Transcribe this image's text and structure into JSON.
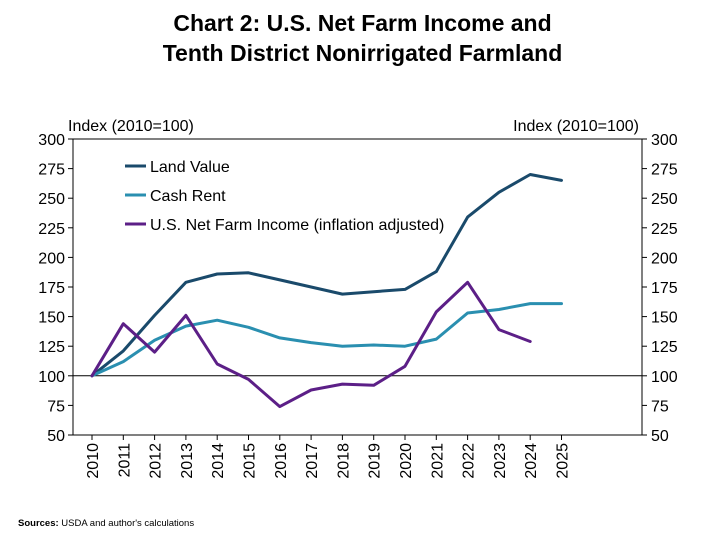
{
  "chart_data": {
    "type": "line",
    "title_line1": "Chart 2: U.S. Net Farm Income and",
    "title_line2": "Tenth District Nonirrigated Farmland",
    "ylabel_left": "Index (2010=100)",
    "ylabel_right": "Index (2010=100)",
    "ylim": [
      50,
      300
    ],
    "yticks": [
      50,
      75,
      100,
      125,
      150,
      175,
      200,
      225,
      250,
      275,
      300
    ],
    "categories": [
      "2010",
      "2011",
      "2012",
      "2013",
      "2014",
      "2015",
      "2016",
      "2017",
      "2018",
      "2019",
      "2020",
      "2021",
      "2022",
      "2023",
      "2024",
      "2025"
    ],
    "reference_line": 100,
    "series": [
      {
        "name": "Land Value",
        "color": "#1a4a6b",
        "values": [
          100,
          121,
          151,
          179,
          186,
          187,
          181,
          175,
          169,
          171,
          173,
          188,
          234,
          255,
          270,
          265
        ]
      },
      {
        "name": "Cash Rent",
        "color": "#2a8fb0",
        "values": [
          100,
          112,
          130,
          142,
          147,
          141,
          132,
          128,
          125,
          126,
          125,
          131,
          153,
          156,
          161,
          161
        ]
      },
      {
        "name": "U.S. Net Farm Income (inflation adjusted)",
        "color": "#5c1f87",
        "values": [
          100,
          144,
          120,
          151,
          110,
          97,
          74,
          88,
          93,
          92,
          108,
          154,
          179,
          139,
          129,
          null
        ]
      }
    ],
    "legend_position": "top-left"
  },
  "source": {
    "label": "Sources:",
    "text": "USDA and author's calculations"
  }
}
